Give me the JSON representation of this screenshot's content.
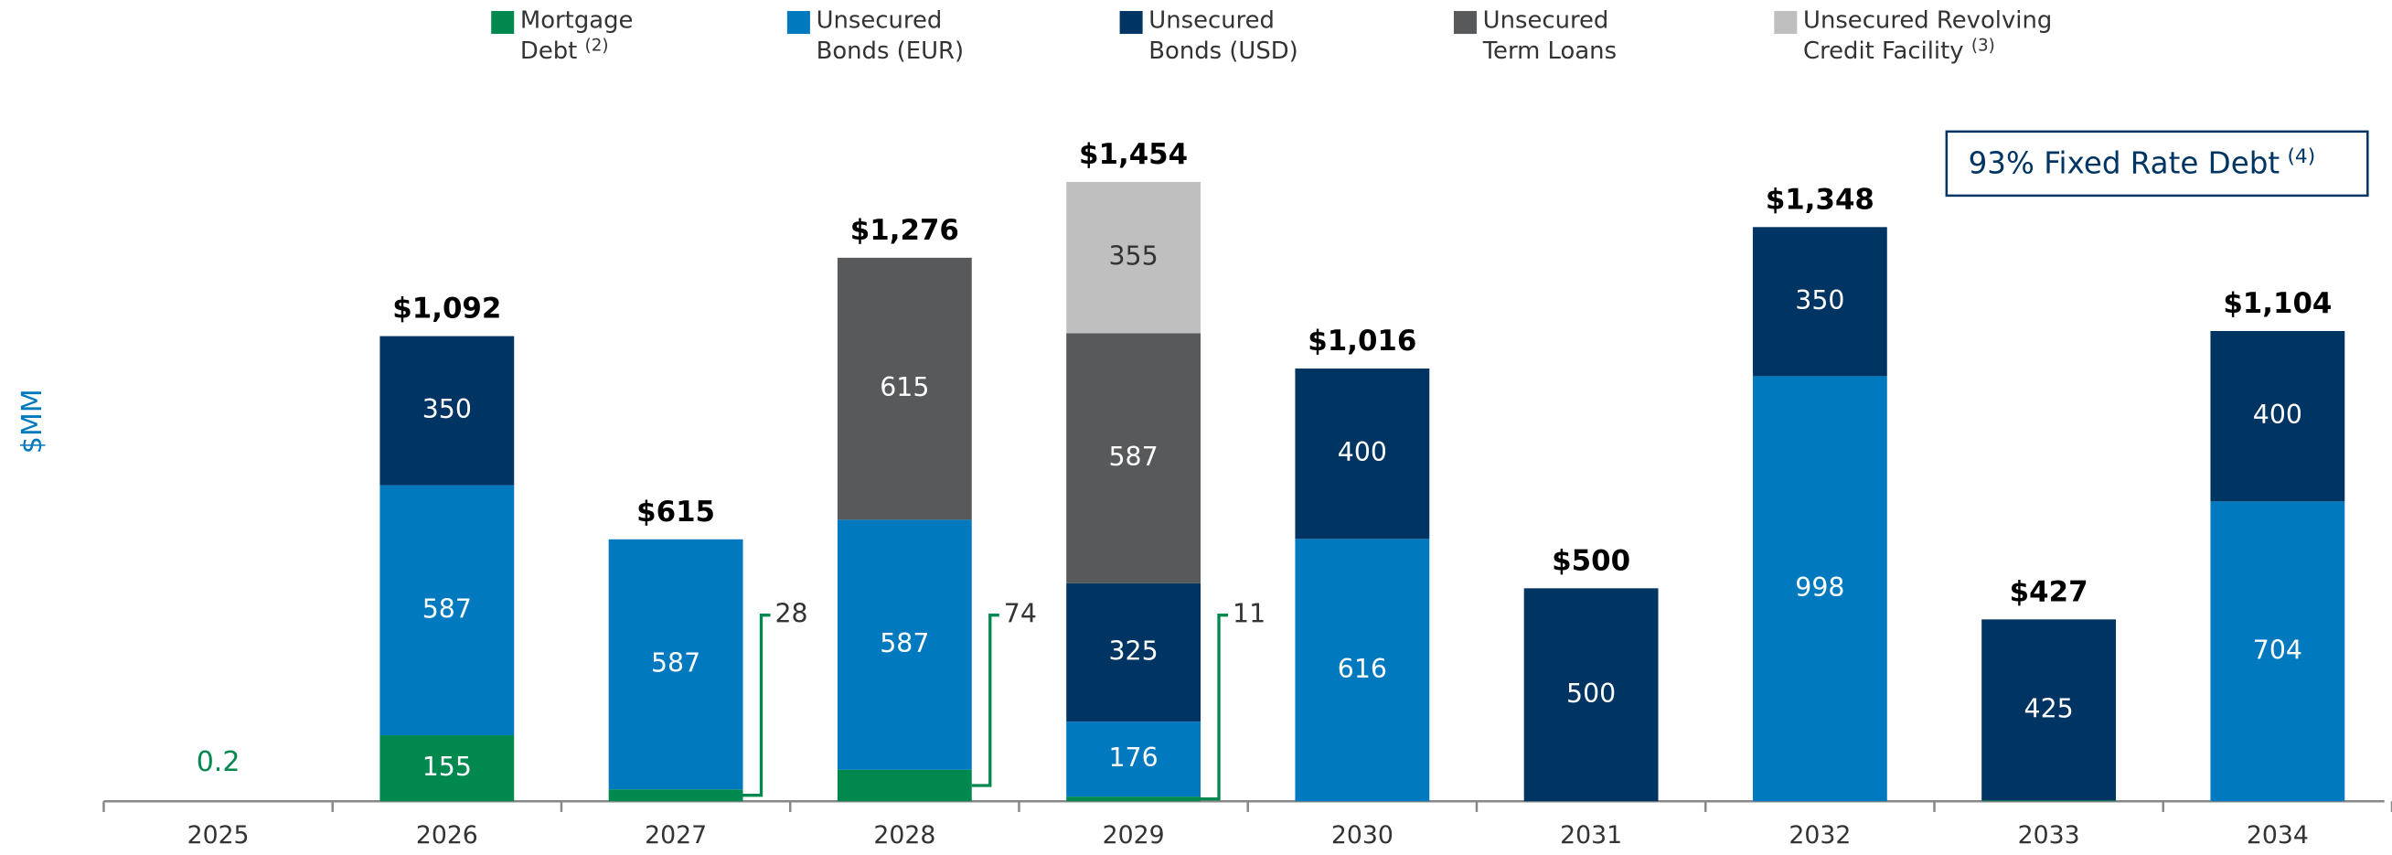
{
  "chart_data": {
    "type": "stacked_bar",
    "y_label": "$MM",
    "annotation": "93% Fixed Rate Debt",
    "annotation_note": "(4)",
    "categories": [
      "2025",
      "2026",
      "2027",
      "2028",
      "2029",
      "2030",
      "2031",
      "2032",
      "2033",
      "2034"
    ],
    "series": [
      {
        "name": "Mortgage Debt",
        "note": "(2)",
        "color": "#00884f",
        "values": [
          0.2,
          155,
          28,
          74,
          11,
          null,
          null,
          null,
          2,
          null
        ]
      },
      {
        "name": "Unsecured Bonds (EUR)",
        "color": "#0079bf",
        "values": [
          null,
          587,
          587,
          587,
          176,
          616,
          null,
          998,
          null,
          704
        ]
      },
      {
        "name": "Unsecured Bonds (USD)",
        "color": "#003462",
        "values": [
          null,
          350,
          null,
          null,
          325,
          400,
          500,
          350,
          425,
          400
        ]
      },
      {
        "name": "Unsecured Term Loans",
        "color": "#58595b",
        "values": [
          null,
          null,
          null,
          615,
          587,
          null,
          null,
          null,
          null,
          null
        ]
      },
      {
        "name": "Unsecured Revolving Credit Facility",
        "note": "(3)",
        "color": "#bfbfbf",
        "values": [
          null,
          null,
          null,
          null,
          355,
          null,
          null,
          null,
          null,
          null
        ]
      }
    ],
    "totals": [
      null,
      1092,
      615,
      1276,
      1454,
      1016,
      500,
      1348,
      427,
      1104
    ],
    "total_labels": [
      null,
      "$1,092",
      "$615",
      "$1,276",
      "$1,454",
      "$1,016",
      "$500",
      "$1,348",
      "$427",
      "$1,104"
    ],
    "ylim": [
      0,
      1500
    ]
  }
}
